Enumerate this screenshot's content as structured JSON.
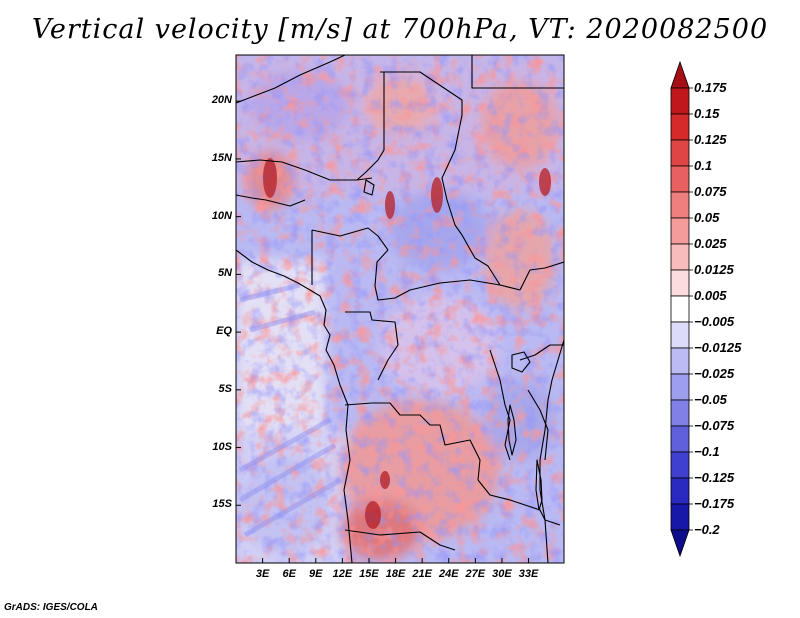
{
  "title": "Vertical velocity [m/s] at 700hPa, VT: 2020082500",
  "footer": "GrADS: IGES/COLA",
  "map": {
    "variable": "Vertical velocity",
    "units": "m/s",
    "level": "700hPa",
    "valid_time": "2020082500",
    "lon_range": [
      0,
      37
    ],
    "lat_range": [
      -20,
      24
    ],
    "lat_labels": [
      "20N",
      "15N",
      "10N",
      "5N",
      "EQ",
      "5S",
      "10S",
      "15S"
    ],
    "lat_values": [
      20,
      15,
      10,
      5,
      0,
      -5,
      -10,
      -15
    ],
    "lon_labels": [
      "3E",
      "6E",
      "9E",
      "12E",
      "15E",
      "18E",
      "21E",
      "24E",
      "27E",
      "30E",
      "33E"
    ],
    "lon_values": [
      3,
      6,
      9,
      12,
      15,
      18,
      21,
      24,
      27,
      30,
      33
    ]
  },
  "colorbar": {
    "labels": [
      "0.175",
      "0.15",
      "0.125",
      "0.1",
      "0.075",
      "0.05",
      "0.025",
      "0.0125",
      "0.005",
      "−0.005",
      "−0.0125",
      "−0.025",
      "−0.05",
      "−0.075",
      "−0.1",
      "−0.125",
      "−0.175",
      "−0.2"
    ],
    "colors": [
      "#a50f15",
      "#c0171c",
      "#d42a2a",
      "#e04545",
      "#e86060",
      "#ef7e7e",
      "#f49c9c",
      "#f8bcbc",
      "#fcdcdc",
      "#ffffff",
      "#dcdcfa",
      "#bcbcf4",
      "#9e9eee",
      "#8080e6",
      "#6060dc",
      "#4040d0",
      "#2a2ac0",
      "#1818a8",
      "#0c0c8c"
    ]
  }
}
